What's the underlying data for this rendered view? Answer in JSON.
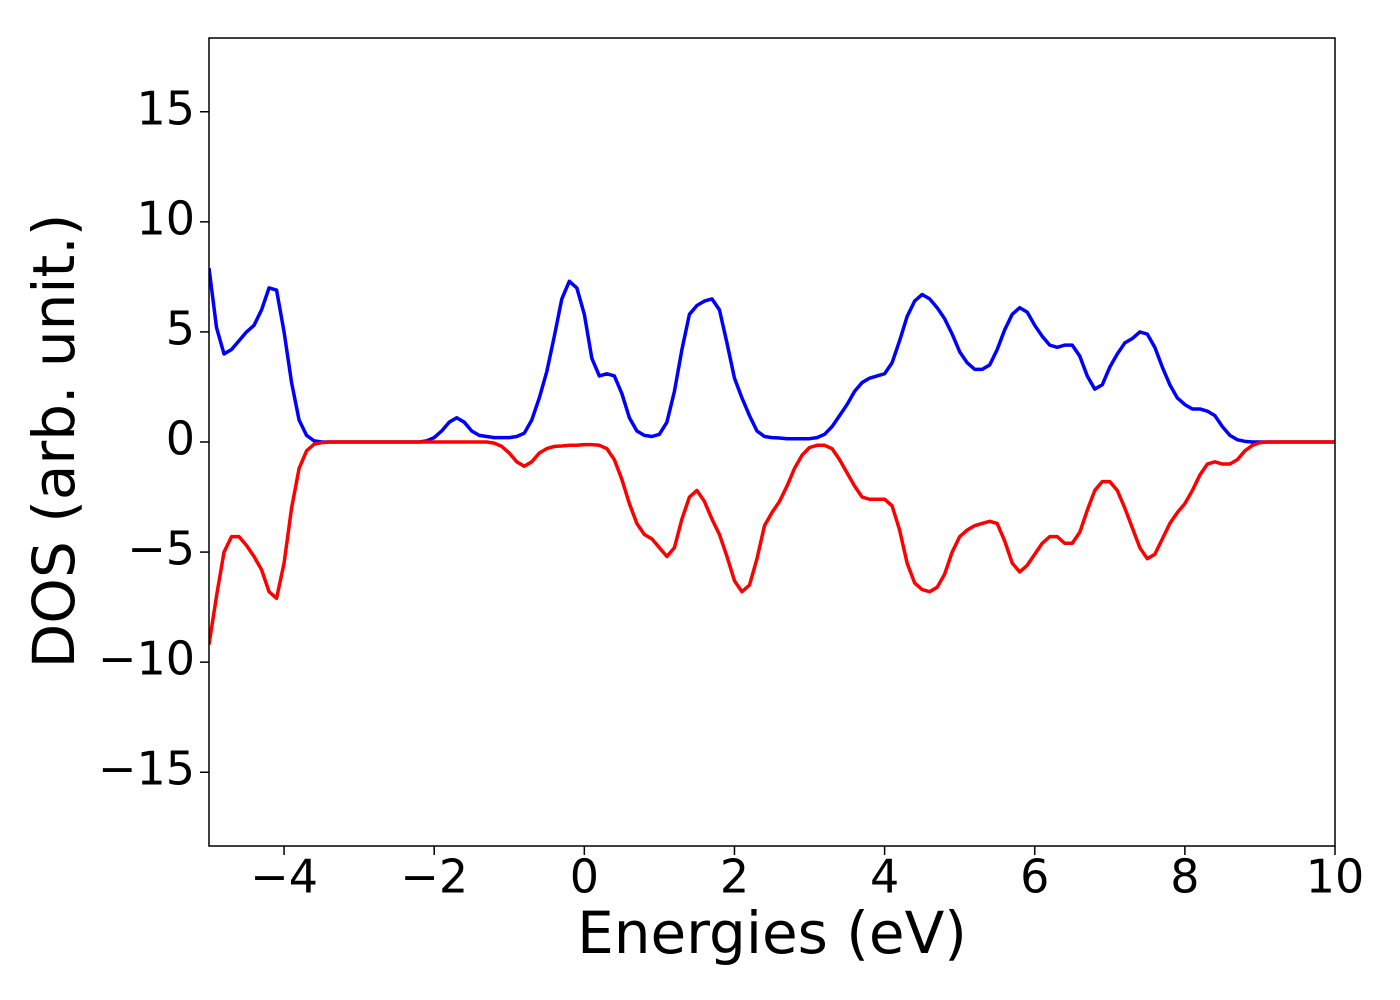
{
  "chart_data": {
    "type": "line",
    "xlabel": "Energies (eV)",
    "ylabel": "DOS (arb. unit.)",
    "xlim": [
      -5,
      10
    ],
    "ylim": [
      -18.35,
      18.35
    ],
    "xticks": [
      {
        "value": -4,
        "label": "−4"
      },
      {
        "value": -2,
        "label": "−2"
      },
      0,
      2,
      4,
      6,
      8,
      10
    ],
    "yticks": [
      {
        "value": -15,
        "label": "−15"
      },
      {
        "value": -10,
        "label": "−10"
      },
      {
        "value": -5,
        "label": "−5"
      },
      0,
      5,
      10,
      15
    ],
    "x": [
      -5,
      -4.9,
      -4.8,
      -4.7,
      -4.6,
      -4.5,
      -4.4,
      -4.3,
      -4.2,
      -4.1,
      -4,
      -3.9,
      -3.8,
      -3.7,
      -3.6,
      -3.5,
      -3.4,
      -3.3,
      -3.2,
      -3.1,
      -3,
      -2.9,
      -2.8,
      -2.7,
      -2.6,
      -2.5,
      -2.4,
      -2.3,
      -2.2,
      -2.1,
      -2,
      -1.9,
      -1.8,
      -1.7,
      -1.6,
      -1.5,
      -1.4,
      -1.3,
      -1.2,
      -1.1,
      -1,
      -0.9,
      -0.8,
      -0.7,
      -0.6,
      -0.5,
      -0.4,
      -0.3,
      -0.2,
      -0.1,
      0,
      0.1,
      0.2,
      0.3,
      0.4,
      0.5,
      0.6,
      0.7,
      0.8,
      0.9,
      1,
      1.1,
      1.2,
      1.3,
      1.4,
      1.5,
      1.6,
      1.7,
      1.8,
      1.9,
      2,
      2.1,
      2.2,
      2.3,
      2.4,
      2.5,
      2.6,
      2.7,
      2.8,
      2.9,
      3,
      3.1,
      3.2,
      3.3,
      3.4,
      3.5,
      3.6,
      3.7,
      3.8,
      3.9,
      4,
      4.1,
      4.2,
      4.3,
      4.4,
      4.5,
      4.6,
      4.7,
      4.8,
      4.9,
      5,
      5.1,
      5.2,
      5.3,
      5.4,
      5.5,
      5.6,
      5.7,
      5.8,
      5.9,
      6,
      6.1,
      6.2,
      6.3,
      6.4,
      6.5,
      6.6,
      6.7,
      6.8,
      6.9,
      7,
      7.1,
      7.2,
      7.3,
      7.4,
      7.5,
      7.6,
      7.7,
      7.8,
      7.9,
      8,
      8.1,
      8.2,
      8.3,
      8.4,
      8.5,
      8.6,
      8.7,
      8.8,
      8.9,
      9,
      9.1,
      9.2,
      9.3,
      9.4,
      9.5,
      9.6,
      9.7,
      9.8,
      9.9,
      10
    ],
    "series": [
      {
        "color": "#0000ff",
        "values": [
          7.9,
          5.2,
          4.0,
          4.2,
          4.6,
          5.0,
          5.3,
          6.0,
          7.0,
          6.9,
          5.0,
          2.7,
          1.0,
          0.3,
          0.05,
          0,
          0,
          0,
          0,
          0,
          0,
          0,
          0,
          0,
          0,
          0,
          0,
          0,
          0,
          0.05,
          0.2,
          0.5,
          0.9,
          1.1,
          0.9,
          0.5,
          0.3,
          0.25,
          0.2,
          0.2,
          0.2,
          0.25,
          0.4,
          1.0,
          2.0,
          3.2,
          4.8,
          6.5,
          7.3,
          7.0,
          5.8,
          3.8,
          3.0,
          3.1,
          3.0,
          2.2,
          1.1,
          0.5,
          0.3,
          0.25,
          0.35,
          0.9,
          2.3,
          4.2,
          5.8,
          6.2,
          6.4,
          6.5,
          6.0,
          4.5,
          2.9,
          2.0,
          1.2,
          0.5,
          0.25,
          0.2,
          0.18,
          0.15,
          0.15,
          0.15,
          0.15,
          0.2,
          0.35,
          0.7,
          1.2,
          1.7,
          2.3,
          2.7,
          2.9,
          3.0,
          3.1,
          3.6,
          4.6,
          5.7,
          6.4,
          6.7,
          6.5,
          6.1,
          5.6,
          4.9,
          4.1,
          3.6,
          3.3,
          3.3,
          3.5,
          4.2,
          5.1,
          5.8,
          6.1,
          5.9,
          5.3,
          4.8,
          4.4,
          4.3,
          4.4,
          4.4,
          3.9,
          3.0,
          2.4,
          2.6,
          3.4,
          4.0,
          4.5,
          4.7,
          5.0,
          4.9,
          4.3,
          3.4,
          2.6,
          2.0,
          1.7,
          1.5,
          1.5,
          1.4,
          1.2,
          0.7,
          0.3,
          0.1,
          0.03,
          0,
          0,
          0,
          0,
          0,
          0,
          0,
          0,
          0,
          0,
          0,
          0
        ]
      },
      {
        "color": "#ff0000",
        "values": [
          -9.2,
          -7.0,
          -5.0,
          -4.3,
          -4.3,
          -4.7,
          -5.2,
          -5.8,
          -6.8,
          -7.1,
          -5.5,
          -3.0,
          -1.2,
          -0.4,
          -0.1,
          -0.03,
          0,
          0,
          0,
          0,
          0,
          0,
          0,
          0,
          0,
          0,
          0,
          0,
          0,
          0,
          0,
          0,
          0,
          0,
          0,
          0,
          0,
          0,
          -0.05,
          -0.2,
          -0.5,
          -0.9,
          -1.1,
          -0.9,
          -0.5,
          -0.3,
          -0.2,
          -0.18,
          -0.15,
          -0.15,
          -0.12,
          -0.12,
          -0.15,
          -0.3,
          -0.8,
          -1.7,
          -2.8,
          -3.7,
          -4.2,
          -4.4,
          -4.8,
          -5.2,
          -4.8,
          -3.5,
          -2.5,
          -2.2,
          -2.7,
          -3.5,
          -4.2,
          -5.2,
          -6.3,
          -6.8,
          -6.5,
          -5.3,
          -3.8,
          -3.2,
          -2.7,
          -2.0,
          -1.2,
          -0.6,
          -0.25,
          -0.15,
          -0.15,
          -0.3,
          -0.8,
          -1.4,
          -2.0,
          -2.5,
          -2.6,
          -2.6,
          -2.6,
          -2.9,
          -4.0,
          -5.5,
          -6.4,
          -6.7,
          -6.8,
          -6.6,
          -6.0,
          -5.0,
          -4.3,
          -4.0,
          -3.8,
          -3.7,
          -3.6,
          -3.7,
          -4.5,
          -5.5,
          -5.9,
          -5.6,
          -5.1,
          -4.6,
          -4.3,
          -4.3,
          -4.6,
          -4.6,
          -4.1,
          -3.1,
          -2.2,
          -1.8,
          -1.8,
          -2.2,
          -3.0,
          -3.9,
          -4.8,
          -5.3,
          -5.1,
          -4.4,
          -3.7,
          -3.2,
          -2.8,
          -2.2,
          -1.5,
          -1.0,
          -0.9,
          -1.0,
          -1.0,
          -0.8,
          -0.4,
          -0.15,
          -0.03,
          0,
          0,
          0,
          0,
          0,
          0,
          0,
          0,
          0,
          0
        ]
      }
    ]
  }
}
